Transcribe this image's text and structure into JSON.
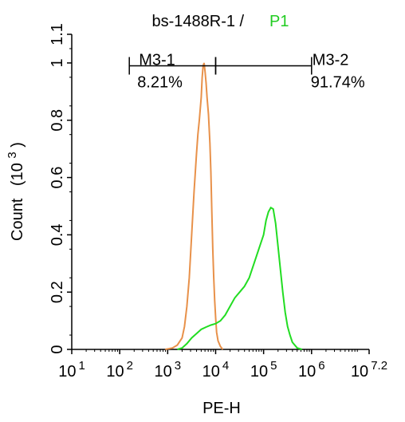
{
  "chart_data": {
    "type": "histogram",
    "title": {
      "sample": "bs-1488R-1",
      "separator": " / ",
      "gate": "P1",
      "gate_color": "#22cc22"
    },
    "xlabel": "PE-H",
    "ylabel": "Count",
    "ylabel_unit": "(10",
    "ylabel_unit_exp": "3",
    "ylabel_unit_close": ")",
    "x_scale": "log",
    "xlim": [
      1,
      7.2
    ],
    "ylim": [
      0,
      1.1
    ],
    "x_ticks": [
      {
        "base": "10",
        "exp": "1",
        "value": 1
      },
      {
        "base": "10",
        "exp": "2",
        "value": 2
      },
      {
        "base": "10",
        "exp": "3",
        "value": 3
      },
      {
        "base": "10",
        "exp": "4",
        "value": 4
      },
      {
        "base": "10",
        "exp": "5",
        "value": 5
      },
      {
        "base": "10",
        "exp": "6",
        "value": 6
      },
      {
        "base": "10",
        "exp": "7.2",
        "value": 7.2
      }
    ],
    "y_ticks": [
      "0",
      "0.2",
      "0.4",
      "0.6",
      "0.8",
      "1",
      "1.1"
    ],
    "y_tick_values": [
      0,
      0.2,
      0.4,
      0.6,
      0.8,
      1,
      1.1
    ],
    "gates": [
      {
        "name": "M3-1",
        "percent": "8.21%",
        "x_range": [
          2.2,
          4.0
        ],
        "y": 0.99
      },
      {
        "name": "M3-2",
        "percent": "91.74%",
        "x_range": [
          4.0,
          6.0
        ],
        "y": 0.99
      }
    ],
    "series": [
      {
        "color": "#e8914a",
        "points": [
          [
            2.95,
            0
          ],
          [
            3.1,
            0.005
          ],
          [
            3.2,
            0.015
          ],
          [
            3.3,
            0.04
          ],
          [
            3.35,
            0.08
          ],
          [
            3.4,
            0.15
          ],
          [
            3.45,
            0.25
          ],
          [
            3.5,
            0.4
          ],
          [
            3.55,
            0.55
          ],
          [
            3.6,
            0.68
          ],
          [
            3.63,
            0.75
          ],
          [
            3.66,
            0.8
          ],
          [
            3.7,
            0.88
          ],
          [
            3.72,
            0.95
          ],
          [
            3.74,
            0.99
          ],
          [
            3.76,
            1.0
          ],
          [
            3.78,
            0.97
          ],
          [
            3.8,
            0.93
          ],
          [
            3.82,
            0.88
          ],
          [
            3.85,
            0.82
          ],
          [
            3.88,
            0.72
          ],
          [
            3.9,
            0.62
          ],
          [
            3.92,
            0.48
          ],
          [
            3.94,
            0.35
          ],
          [
            3.96,
            0.25
          ],
          [
            3.98,
            0.17
          ],
          [
            4.0,
            0.11
          ],
          [
            4.02,
            0.06
          ],
          [
            4.05,
            0.03
          ],
          [
            4.1,
            0.01
          ],
          [
            4.15,
            0
          ]
        ]
      },
      {
        "color": "#22dd22",
        "points": [
          [
            3.2,
            0
          ],
          [
            3.3,
            0.005
          ],
          [
            3.4,
            0.02
          ],
          [
            3.5,
            0.04
          ],
          [
            3.6,
            0.055
          ],
          [
            3.7,
            0.07
          ],
          [
            3.8,
            0.078
          ],
          [
            3.9,
            0.085
          ],
          [
            4.0,
            0.09
          ],
          [
            4.1,
            0.1
          ],
          [
            4.2,
            0.12
          ],
          [
            4.3,
            0.15
          ],
          [
            4.4,
            0.18
          ],
          [
            4.5,
            0.2
          ],
          [
            4.6,
            0.22
          ],
          [
            4.7,
            0.25
          ],
          [
            4.8,
            0.3
          ],
          [
            4.9,
            0.35
          ],
          [
            5.0,
            0.4
          ],
          [
            5.05,
            0.45
          ],
          [
            5.1,
            0.48
          ],
          [
            5.15,
            0.495
          ],
          [
            5.2,
            0.49
          ],
          [
            5.25,
            0.44
          ],
          [
            5.3,
            0.36
          ],
          [
            5.35,
            0.28
          ],
          [
            5.4,
            0.2
          ],
          [
            5.45,
            0.13
          ],
          [
            5.5,
            0.08
          ],
          [
            5.55,
            0.05
          ],
          [
            5.6,
            0.025
          ],
          [
            5.7,
            0.005
          ],
          [
            5.8,
            0
          ]
        ]
      }
    ]
  }
}
